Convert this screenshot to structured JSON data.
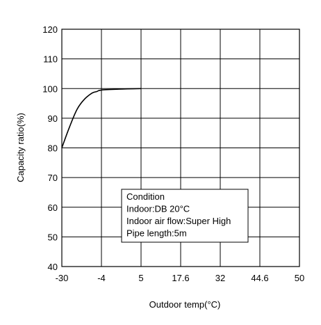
{
  "chart_data": {
    "type": "line",
    "title": "",
    "xlabel": "Outdoor temp(°C)",
    "ylabel": "Capacity ratio(%)",
    "x_ticks": [
      "-30",
      "-4",
      "5",
      "17.6",
      "32",
      "44.6",
      "50"
    ],
    "y_ticks": [
      120,
      110,
      100,
      90,
      80,
      70,
      60,
      50,
      40
    ],
    "ylim": [
      40,
      120
    ],
    "grid": true,
    "series": [
      {
        "x": [
          "-30",
          "-25",
          "-20",
          "-15",
          "-10",
          "-7",
          "-4",
          "0",
          "5"
        ],
        "values": [
          80,
          87,
          93,
          96.5,
          98.5,
          99.0,
          99.5,
          99.8,
          100
        ]
      }
    ],
    "annotation": {
      "lines": [
        "Condition",
        "Indoor:DB 20°C",
        "Indoor air flow:Super High",
        "Pipe length:5m"
      ]
    }
  }
}
